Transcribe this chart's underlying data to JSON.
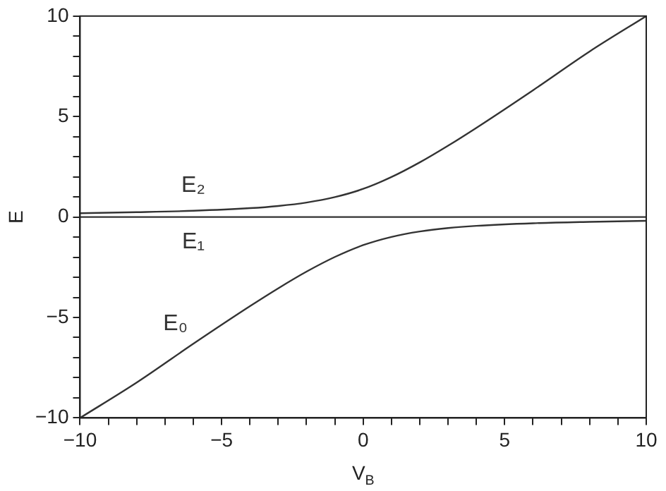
{
  "chart_data": {
    "type": "line",
    "xlabel": "V$_{B}$",
    "ylabel": "E",
    "x": [
      -10,
      -8,
      -6,
      -4,
      -3,
      -2,
      -1,
      0,
      1,
      2,
      3,
      4,
      6,
      8,
      10
    ],
    "series": [
      {
        "name": "E₂",
        "color": "#333333",
        "values": [
          0.19,
          0.24,
          0.31,
          0.44,
          0.55,
          0.72,
          0.99,
          1.4,
          1.99,
          2.72,
          3.55,
          4.44,
          6.31,
          8.24,
          10
        ]
      },
      {
        "name": "E₁",
        "color": "#333333",
        "values": [
          0,
          0,
          0,
          0,
          0,
          0,
          0,
          0,
          0,
          0,
          0,
          0,
          0,
          0,
          0
        ]
      },
      {
        "name": "E₀",
        "color": "#333333",
        "values": [
          -10,
          -8.24,
          -6.31,
          -4.44,
          -3.55,
          -2.72,
          -1.99,
          -1.4,
          -0.99,
          -0.72,
          -0.55,
          -0.44,
          -0.31,
          -0.24,
          -0.19
        ]
      }
    ],
    "xlim": [
      -10,
      10
    ],
    "ylim": [
      -10,
      10
    ],
    "xticks": [
      -10,
      {
        "value": -9,
        "label": null
      },
      {
        "value": -8,
        "label": null
      },
      {
        "value": -7,
        "label": null
      },
      {
        "value": -6,
        "label": null
      },
      -5,
      {
        "value": -4,
        "label": null
      },
      {
        "value": -3,
        "label": null
      },
      {
        "value": -2,
        "label": null
      },
      {
        "value": -1,
        "label": null
      },
      0,
      {
        "value": 1,
        "label": null
      },
      {
        "value": 2,
        "label": null
      },
      {
        "value": 3,
        "label": null
      },
      {
        "value": 4,
        "label": null
      },
      5,
      {
        "value": 6,
        "label": null
      },
      {
        "value": 7,
        "label": null
      },
      {
        "value": 8,
        "label": null
      },
      {
        "value": 9,
        "label": null
      },
      10
    ],
    "yticks": [
      -10,
      {
        "value": -9,
        "label": null
      },
      {
        "value": -8,
        "label": null
      },
      {
        "value": -7,
        "label": null
      },
      {
        "value": -6,
        "label": null
      },
      -5,
      {
        "value": -4,
        "label": null
      },
      {
        "value": -3,
        "label": null
      },
      {
        "value": -2,
        "label": null
      },
      {
        "value": -1,
        "label": null
      },
      0,
      {
        "value": 1,
        "label": null
      },
      {
        "value": 2,
        "label": null
      },
      {
        "value": 3,
        "label": null
      },
      {
        "value": 4,
        "label": null
      },
      5,
      {
        "value": 6,
        "label": null
      },
      {
        "value": 7,
        "label": null
      },
      {
        "value": 8,
        "label": null
      },
      {
        "value": 9,
        "label": null
      },
      10
    ],
    "grid": false,
    "legend": false,
    "marker": "none",
    "line_style": "solid"
  }
}
